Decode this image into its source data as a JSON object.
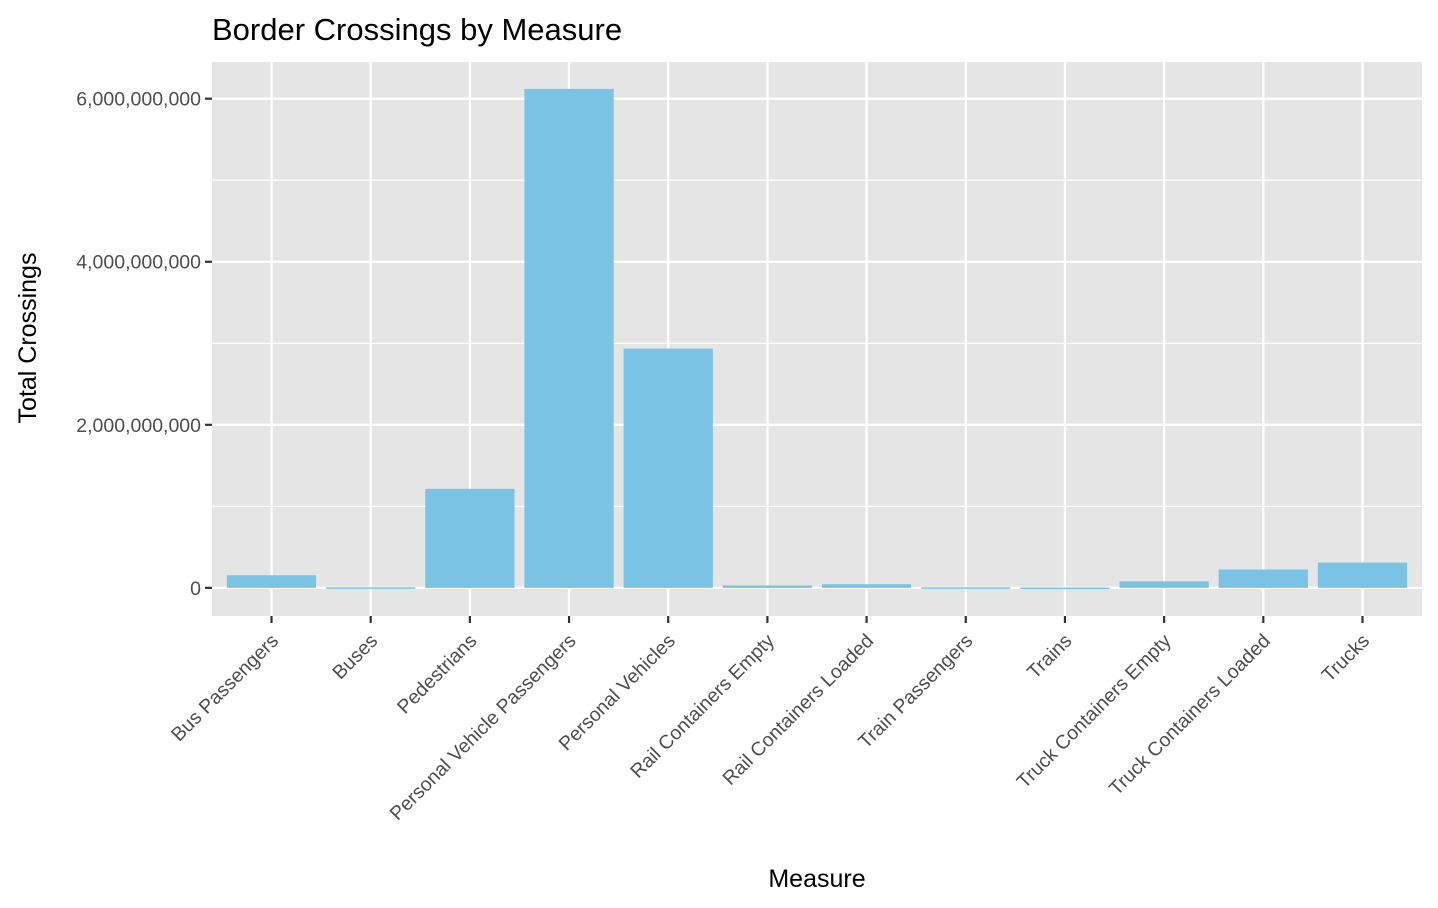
{
  "chart_data": {
    "type": "bar",
    "title": "Border Crossings by Measure",
    "xlabel": "Measure",
    "ylabel": "Total Crossings",
    "categories": [
      "Bus Passengers",
      "Buses",
      "Pedestrians",
      "Personal Vehicle Passengers",
      "Personal Vehicles",
      "Rail Containers Empty",
      "Rail Containers Loaded",
      "Train Passengers",
      "Trains",
      "Truck Containers Empty",
      "Truck Containers Loaded",
      "Trucks"
    ],
    "values": [
      155000000,
      7000000,
      1215000000,
      6120000000,
      2935000000,
      30000000,
      45000000,
      7000000,
      4000000,
      80000000,
      225000000,
      310000000
    ],
    "ylim": [
      -345000000,
      6450000000
    ],
    "yticks": [
      0,
      2000000000,
      4000000000,
      6000000000
    ],
    "ytick_labels": [
      "0",
      "2,000,000,000",
      "4,000,000,000",
      "6,000,000,000"
    ],
    "grid": true,
    "legend": "none",
    "colors": {
      "bar": "#7bc3e5",
      "panel": "#e5e5e5",
      "grid": "#ffffff"
    }
  }
}
